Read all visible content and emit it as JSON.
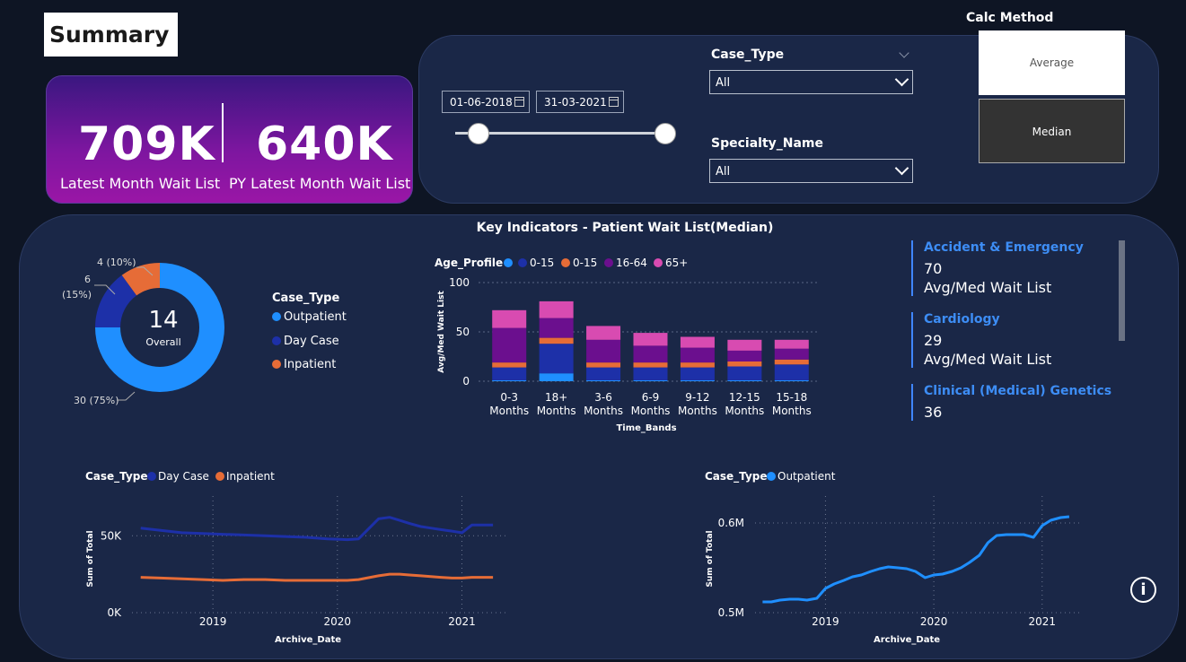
{
  "page": {
    "title": "Summary"
  },
  "kpi": {
    "latest_value": "709K",
    "latest_label": "Latest Month Wait List",
    "py_value": "640K",
    "py_label": "PY Latest Month Wait List"
  },
  "filters": {
    "start_date": "01-06-2018",
    "end_date": "31-03-2021",
    "case_type_label": "Case_Type",
    "case_type_value": "All",
    "specialty_label": "Specialty_Name",
    "specialty_value": "All"
  },
  "calc_method": {
    "title": "Calc Method",
    "options": [
      "Average",
      "Median"
    ],
    "selected": "Median"
  },
  "key_indicators": {
    "title": "Key Indicators - Patient Wait List(Median)"
  },
  "donut": {
    "center_value": "14",
    "center_label": "Overall",
    "legend_title": "Case_Type",
    "legend": [
      "Outpatient",
      "Day Case",
      "Inpatient"
    ],
    "slice_labels": [
      "30 (75%)",
      "6",
      "(15%)",
      "4 (10%)"
    ]
  },
  "indicator_cards": [
    {
      "name": "Accident & Emergency",
      "value": "70",
      "label": "Avg/Med Wait List"
    },
    {
      "name": "Cardiology",
      "value": "29",
      "label": "Avg/Med Wait List"
    },
    {
      "name": "Clinical (Medical) Genetics",
      "value": "36",
      "label": ""
    }
  ],
  "colors": {
    "outpatient": "#1f8fff",
    "day_case": "#1d30a8",
    "inpatient": "#e66c37",
    "age_16_64": "#6b0f8e",
    "age_65_plus": "#d84bb1",
    "panel": "#1a2747",
    "background": "#0e1524"
  },
  "chart_data": [
    {
      "type": "bar",
      "stacked": true,
      "legend_title": "Age_Profile",
      "xlabel": "Time_Bands",
      "ylabel": "Avg/Med Wait List",
      "ylim": [
        0,
        100
      ],
      "yticks": [
        "0",
        "50",
        "100"
      ],
      "categories": [
        "0-3 Months",
        "18+ Months",
        "3-6 Months",
        "6-9 Months",
        "9-12 Months",
        "12-15 Months",
        "15-18 Months"
      ],
      "category_lines": [
        [
          "0-3",
          "Months"
        ],
        [
          "18+",
          "Months"
        ],
        [
          "3-6",
          "Months"
        ],
        [
          "6-9",
          "Months"
        ],
        [
          "9-12",
          "Months"
        ],
        [
          "12-15",
          "Months"
        ],
        [
          "15-18",
          "Months"
        ]
      ],
      "series": [
        {
          "name": "",
          "color": "#1f8fff",
          "values": [
            1,
            8,
            1,
            1,
            1,
            1,
            1
          ]
        },
        {
          "name": "0-15",
          "color": "#1d30a8",
          "values": [
            13,
            30,
            13,
            13,
            13,
            14,
            16
          ]
        },
        {
          "name": "0-15",
          "color": "#e66c37",
          "values": [
            5,
            6,
            5,
            5,
            5,
            5,
            5
          ]
        },
        {
          "name": "16-64",
          "color": "#6b0f8e",
          "values": [
            35,
            20,
            23,
            17,
            15,
            11,
            11
          ]
        },
        {
          "name": "65+",
          "color": "#d84bb1",
          "values": [
            18,
            17,
            14,
            13,
            11,
            11,
            9
          ]
        }
      ]
    },
    {
      "type": "line",
      "legend_title": "Case_Type",
      "xlabel": "Archive_Date",
      "ylabel": "Sum of Total",
      "yticks": [
        "0K",
        "50K"
      ],
      "xticks": [
        "2019",
        "2020",
        "2021"
      ],
      "ylim": [
        0,
        70000
      ],
      "xlim": [
        2018.35,
        2021.35
      ],
      "series": [
        {
          "name": "Day Case",
          "color": "#1d30a8",
          "x": [
            2018.42,
            2018.58,
            2018.75,
            2018.92,
            2019.08,
            2019.25,
            2019.42,
            2019.58,
            2019.75,
            2019.92,
            2020.08,
            2020.17,
            2020.33,
            2020.42,
            2020.5,
            2020.58,
            2020.67,
            2020.75,
            2020.83,
            2020.92,
            2021.0,
            2021.08,
            2021.25
          ],
          "y": [
            55000,
            53500,
            52000,
            51500,
            51000,
            50500,
            50000,
            49500,
            49000,
            48000,
            47500,
            48000,
            61000,
            62000,
            60000,
            58000,
            56000,
            55000,
            54000,
            53000,
            52000,
            57000,
            57000
          ]
        },
        {
          "name": "Inpatient",
          "color": "#e66c37",
          "x": [
            2018.42,
            2018.58,
            2018.75,
            2018.92,
            2019.08,
            2019.25,
            2019.42,
            2019.58,
            2019.75,
            2019.92,
            2020.08,
            2020.17,
            2020.33,
            2020.42,
            2020.5,
            2020.58,
            2020.67,
            2020.75,
            2020.83,
            2020.92,
            2021.0,
            2021.08,
            2021.25
          ],
          "y": [
            23000,
            22500,
            22000,
            21500,
            21000,
            21500,
            21500,
            21000,
            21000,
            21000,
            21000,
            21500,
            24000,
            25000,
            25000,
            24500,
            24000,
            23500,
            23000,
            22500,
            22500,
            23000,
            23000
          ]
        }
      ]
    },
    {
      "type": "line",
      "legend_title": "Case_Type",
      "xlabel": "Archive_Date",
      "ylabel": "Sum of Total",
      "yticks": [
        "0.5M",
        "0.6M"
      ],
      "xticks": [
        "2019",
        "2020",
        "2021"
      ],
      "ylim": [
        0.5,
        0.62
      ],
      "xlim": [
        2018.35,
        2021.35
      ],
      "series": [
        {
          "name": "Outpatient",
          "color": "#1f8fff",
          "x": [
            2018.42,
            2018.5,
            2018.58,
            2018.67,
            2018.75,
            2018.83,
            2018.92,
            2019.0,
            2019.08,
            2019.17,
            2019.25,
            2019.33,
            2019.42,
            2019.5,
            2019.58,
            2019.67,
            2019.75,
            2019.83,
            2019.92,
            2020.0,
            2020.08,
            2020.17,
            2020.25,
            2020.33,
            2020.42,
            2020.5,
            2020.58,
            2020.67,
            2020.75,
            2020.83,
            2020.92,
            2021.0,
            2021.08,
            2021.17,
            2021.25
          ],
          "y": [
            0.512,
            0.512,
            0.514,
            0.515,
            0.515,
            0.514,
            0.516,
            0.527,
            0.532,
            0.536,
            0.54,
            0.542,
            0.546,
            0.549,
            0.551,
            0.55,
            0.549,
            0.546,
            0.539,
            0.542,
            0.543,
            0.546,
            0.55,
            0.556,
            0.564,
            0.578,
            0.586,
            0.587,
            0.587,
            0.587,
            0.584,
            0.597,
            0.603,
            0.606,
            0.607
          ]
        }
      ]
    }
  ]
}
